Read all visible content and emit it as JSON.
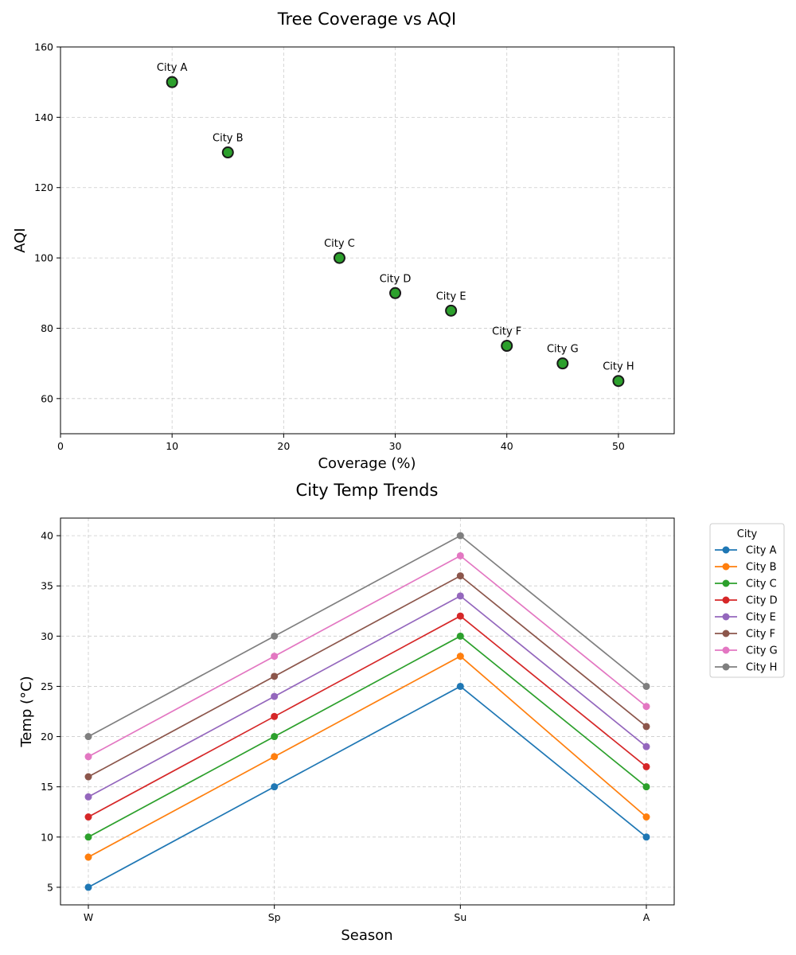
{
  "chart_data": [
    {
      "type": "scatter",
      "title": "Tree Coverage vs AQI",
      "xlabel": "Coverage (%)",
      "ylabel": "AQI",
      "xlim": [
        0,
        55
      ],
      "ylim": [
        50,
        160
      ],
      "xticks": [
        0,
        10,
        20,
        30,
        40,
        50
      ],
      "yticks": [
        60,
        80,
        100,
        120,
        140,
        160
      ],
      "grid": true,
      "marker_color": "#2ca02c",
      "points": [
        {
          "label": "City A",
          "x": 10,
          "y": 150
        },
        {
          "label": "City B",
          "x": 15,
          "y": 130
        },
        {
          "label": "City C",
          "x": 25,
          "y": 100
        },
        {
          "label": "City D",
          "x": 30,
          "y": 90
        },
        {
          "label": "City E",
          "x": 35,
          "y": 85
        },
        {
          "label": "City F",
          "x": 40,
          "y": 75
        },
        {
          "label": "City G",
          "x": 45,
          "y": 70
        },
        {
          "label": "City H",
          "x": 50,
          "y": 65
        }
      ]
    },
    {
      "type": "line",
      "title": "City Temp Trends",
      "xlabel": "Season",
      "ylabel": "Temp (°C)",
      "categories": [
        "W",
        "Sp",
        "Su",
        "A"
      ],
      "ylim": [
        3.25,
        41.75
      ],
      "yticks": [
        5,
        10,
        15,
        20,
        25,
        30,
        35,
        40
      ],
      "grid": true,
      "legend_title": "City",
      "legend_position": "outside-upper-right",
      "series": [
        {
          "name": "City A",
          "color": "#1f77b4",
          "values": [
            5,
            15,
            25,
            10
          ]
        },
        {
          "name": "City B",
          "color": "#ff7f0e",
          "values": [
            8,
            18,
            28,
            12
          ]
        },
        {
          "name": "City C",
          "color": "#2ca02c",
          "values": [
            10,
            20,
            30,
            15
          ]
        },
        {
          "name": "City D",
          "color": "#d62728",
          "values": [
            12,
            22,
            32,
            17
          ]
        },
        {
          "name": "City E",
          "color": "#9467bd",
          "values": [
            14,
            24,
            34,
            19
          ]
        },
        {
          "name": "City F",
          "color": "#8c564b",
          "values": [
            16,
            26,
            36,
            21
          ]
        },
        {
          "name": "City G",
          "color": "#e377c2",
          "values": [
            18,
            28,
            38,
            23
          ]
        },
        {
          "name": "City H",
          "color": "#7f7f7f",
          "values": [
            20,
            30,
            40,
            25
          ]
        }
      ]
    }
  ]
}
